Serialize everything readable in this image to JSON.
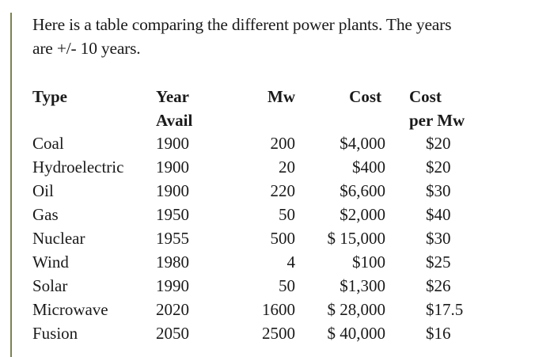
{
  "intro": {
    "line1": "Here is a table comparing the different power plants. The years",
    "line2": "are +/- 10 years."
  },
  "table": {
    "headers": {
      "type": "Type",
      "year_1": "Year",
      "year_2": "Avail",
      "mw": "Mw",
      "cost": "Cost",
      "cpm_1": "Cost",
      "cpm_2": "per Mw"
    },
    "rows": [
      {
        "type": "Coal",
        "year": "1900",
        "mw": "200",
        "cost": "$4,000",
        "cpm": "$20"
      },
      {
        "type": "Hydroelectric",
        "year": "1900",
        "mw": "20",
        "cost": "$400",
        "cpm": "$20"
      },
      {
        "type": "Oil",
        "year": "1900",
        "mw": "220",
        "cost": "$6,600",
        "cpm": "$30"
      },
      {
        "type": "Gas",
        "year": "1950",
        "mw": "50",
        "cost": "$2,000",
        "cpm": "$40"
      },
      {
        "type": "Nuclear",
        "year": "1955",
        "mw": "500",
        "cost": "$ 15,000",
        "cpm": "$30"
      },
      {
        "type": "Wind",
        "year": "1980",
        "mw": "4",
        "cost": "$100",
        "cpm": "$25"
      },
      {
        "type": "Solar",
        "year": "1990",
        "mw": "50",
        "cost": "$1,300",
        "cpm": "$26"
      },
      {
        "type": "Microwave",
        "year": "2020",
        "mw": "1600",
        "cost": "$ 28,000",
        "cpm": "$17.5"
      },
      {
        "type": "Fusion",
        "year": "2050",
        "mw": "2500",
        "cost": "$ 40,000",
        "cpm": "$16"
      }
    ]
  }
}
